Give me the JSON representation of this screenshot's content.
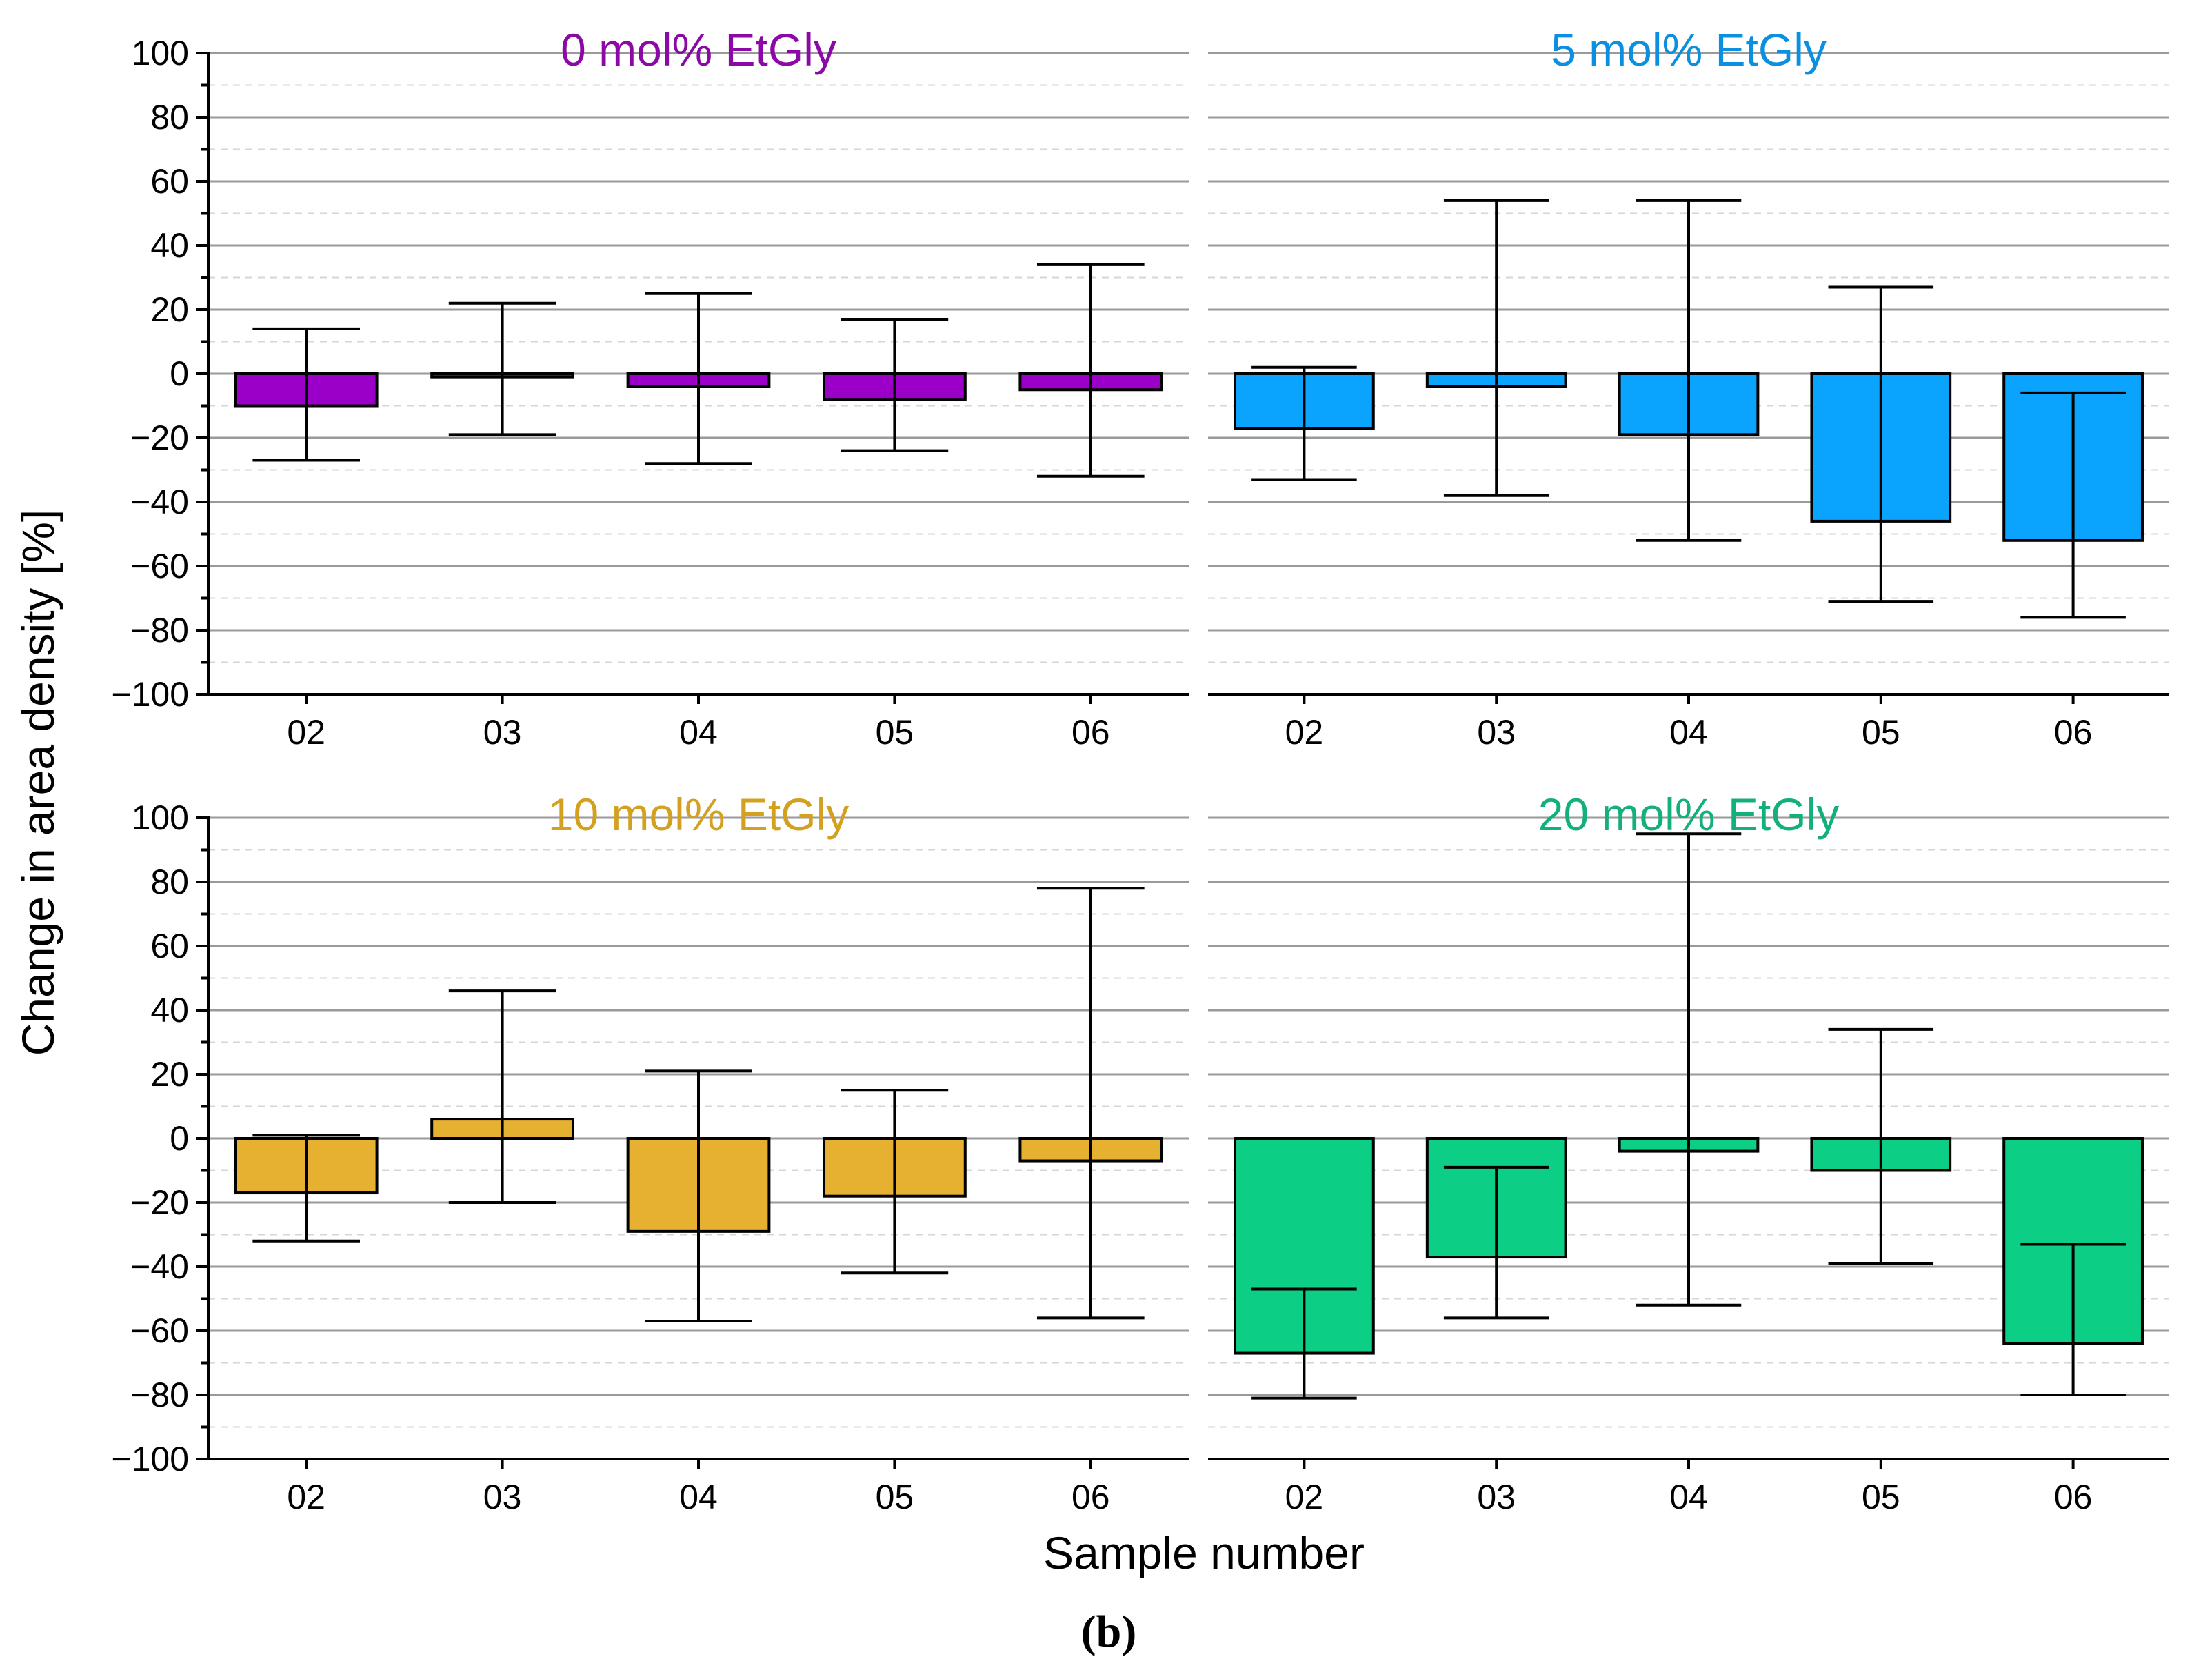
{
  "figure": {
    "y_axis_title": "Change in area density [%]",
    "x_axis_title": "Sample number",
    "caption": "(b)"
  },
  "chart_data": [
    {
      "type": "bar",
      "title": "0 mol% EtGly",
      "title_color": "#8B0AA5",
      "bar_color": "#9B00C9",
      "categories": [
        "02",
        "03",
        "04",
        "05",
        "06"
      ],
      "values": [
        -10,
        -1,
        -4,
        -8,
        -5
      ],
      "error_high": [
        14,
        22,
        25,
        17,
        34
      ],
      "error_low": [
        -27,
        -19,
        -28,
        -24,
        -32
      ],
      "ylim": [
        -100,
        100
      ],
      "yticks": [
        "100",
        "80",
        "60",
        "40",
        "20",
        "0",
        "−20",
        "−40",
        "−60",
        "−80",
        "−100"
      ],
      "xlabel": "Sample number",
      "ylabel": "Change in area density [%]"
    },
    {
      "type": "bar",
      "title": "5 mol% EtGly",
      "title_color": "#0B8FE0",
      "bar_color": "#0AA4FF",
      "categories": [
        "02",
        "03",
        "04",
        "05",
        "06"
      ],
      "values": [
        -17,
        -4,
        -19,
        -46,
        -52
      ],
      "error_high": [
        2,
        54,
        54,
        27,
        -6
      ],
      "error_low": [
        -33,
        -38,
        -52,
        -71,
        -76
      ],
      "ylim": [
        -100,
        100
      ],
      "xlabel": "Sample number",
      "ylabel": "Change in area density [%]"
    },
    {
      "type": "bar",
      "title": "10 mol% EtGly",
      "title_color": "#D4A020",
      "bar_color": "#E6B030",
      "categories": [
        "02",
        "03",
        "04",
        "05",
        "06"
      ],
      "values": [
        -17,
        6,
        -29,
        -18,
        -7
      ],
      "error_high": [
        1,
        46,
        21,
        15,
        78
      ],
      "error_low": [
        -32,
        -20,
        -57,
        -42,
        -56
      ],
      "ylim": [
        -100,
        100
      ],
      "yticks": [
        "100",
        "80",
        "60",
        "40",
        "20",
        "0",
        "−20",
        "−40",
        "−60",
        "−80",
        "−100"
      ],
      "xlabel": "Sample number",
      "ylabel": "Change in area density [%]"
    },
    {
      "type": "bar",
      "title": "20 mol% EtGly",
      "title_color": "#14B07A",
      "bar_color": "#0CCF85",
      "categories": [
        "02",
        "03",
        "04",
        "05",
        "06"
      ],
      "values": [
        -67,
        -37,
        -4,
        -10,
        -64
      ],
      "error_high": [
        -47,
        -9,
        95,
        34,
        -33
      ],
      "error_low": [
        -81,
        -56,
        -52,
        -39,
        -80
      ],
      "ylim": [
        -100,
        100
      ],
      "xlabel": "Sample number",
      "ylabel": "Change in area density [%]"
    }
  ]
}
